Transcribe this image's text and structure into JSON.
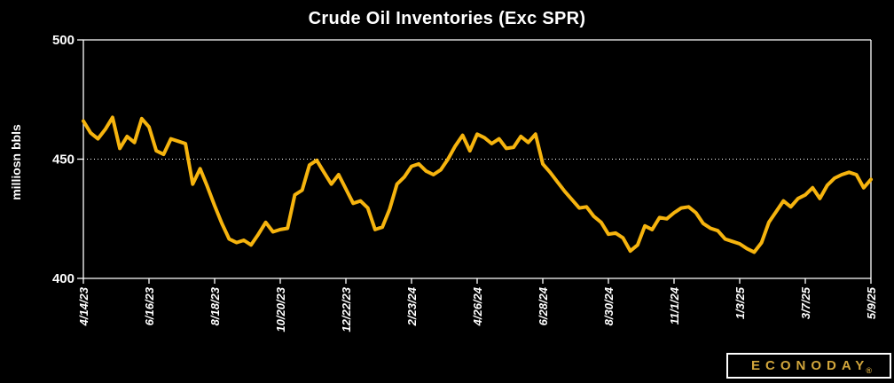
{
  "title": "Crude Oil Inventories (Exc SPR)",
  "y_axis_label": "milliosn bbls",
  "logo": {
    "text": "ECONODAY",
    "registered_mark": "®"
  },
  "colors": {
    "background": "#000000",
    "line": "#F6B40E",
    "axis": "#FFFFFF",
    "text": "#FFFFFF",
    "logo_text": "#D2A63C"
  },
  "chart_data": {
    "type": "line",
    "title": "Crude Oil Inventories (Exc SPR)",
    "xlabel": "",
    "ylabel": "milliosn bbls",
    "ylim": [
      400,
      500
    ],
    "y_ticks": [
      500,
      450,
      400
    ],
    "dotted_gridline_at": 450,
    "legend_position": "none",
    "x_tick_indices": [
      0,
      9,
      18,
      27,
      36,
      45,
      54,
      63,
      72,
      81,
      90,
      99,
      108
    ],
    "x_tick_labels": [
      "4/14/23",
      "6/16/23",
      "8/18/23",
      "10/20/23",
      "12/22/23",
      "2/23/24",
      "4/26/24",
      "6/28/24",
      "8/30/24",
      "11/1/24",
      "1/3/25",
      "3/7/25",
      "5/9/25"
    ],
    "x": [
      "4/14/23",
      "4/21/23",
      "4/28/23",
      "5/5/23",
      "5/12/23",
      "5/19/23",
      "5/26/23",
      "6/2/23",
      "6/9/23",
      "6/16/23",
      "6/23/23",
      "6/30/23",
      "7/7/23",
      "7/14/23",
      "7/21/23",
      "7/28/23",
      "8/4/23",
      "8/11/23",
      "8/18/23",
      "8/25/23",
      "9/1/23",
      "9/8/23",
      "9/15/23",
      "9/22/23",
      "9/29/23",
      "10/6/23",
      "10/13/23",
      "10/20/23",
      "10/27/23",
      "11/3/23",
      "11/10/23",
      "11/17/23",
      "11/24/23",
      "12/1/23",
      "12/8/23",
      "12/15/23",
      "12/22/23",
      "12/29/23",
      "1/5/24",
      "1/12/24",
      "1/19/24",
      "1/26/24",
      "2/2/24",
      "2/9/24",
      "2/16/24",
      "2/23/24",
      "3/1/24",
      "3/8/24",
      "3/15/24",
      "3/22/24",
      "3/29/24",
      "4/5/24",
      "4/12/24",
      "4/19/24",
      "4/26/24",
      "5/3/24",
      "5/10/24",
      "5/17/24",
      "5/24/24",
      "5/31/24",
      "6/7/24",
      "6/14/24",
      "6/21/24",
      "6/28/24",
      "7/5/24",
      "7/12/24",
      "7/19/24",
      "7/26/24",
      "8/2/24",
      "8/9/24",
      "8/16/24",
      "8/23/24",
      "8/30/24",
      "9/6/24",
      "9/13/24",
      "9/20/24",
      "9/27/24",
      "10/4/24",
      "10/11/24",
      "10/18/24",
      "10/25/24",
      "11/1/24",
      "11/8/24",
      "11/15/24",
      "11/22/24",
      "11/29/24",
      "12/6/24",
      "12/13/24",
      "12/20/24",
      "12/27/24",
      "1/3/25",
      "1/10/25",
      "1/17/25",
      "1/24/25",
      "1/31/25",
      "2/7/25",
      "2/14/25",
      "2/21/25",
      "2/28/25",
      "3/7/25",
      "3/14/25",
      "3/21/25",
      "3/28/25",
      "4/4/25",
      "4/11/25",
      "4/18/25",
      "4/25/25",
      "5/2/25",
      "5/9/25"
    ],
    "series": [
      {
        "name": "Crude Oil Inventories (Exc SPR), million bbls",
        "values": [
          466,
          461,
          458.5,
          462.5,
          467.5,
          454.5,
          459.5,
          457,
          467,
          463.5,
          453.5,
          452,
          458.5,
          457.5,
          456.5,
          439.5,
          446,
          438.5,
          430.5,
          423,
          416.5,
          415,
          416,
          414,
          418.5,
          423.5,
          419.5,
          420.5,
          421,
          435,
          437,
          447.5,
          449.5,
          444.5,
          439.5,
          443.5,
          437.5,
          431.5,
          432.5,
          429.5,
          420.5,
          421.5,
          429,
          439.5,
          442.5,
          447,
          448,
          445,
          443.5,
          445.5,
          450,
          455.5,
          460,
          453.5,
          460.5,
          459,
          456.5,
          458.5,
          454.5,
          455,
          459.5,
          457,
          460.5,
          448,
          444.5,
          440.5,
          436.5,
          433,
          429.5,
          430,
          426,
          423.5,
          418.5,
          419,
          417,
          411.5,
          414,
          422,
          420.5,
          425.5,
          425,
          427.5,
          429.5,
          430,
          427.5,
          423,
          421,
          420,
          416.5,
          415.5,
          414.5,
          412.5,
          411,
          415,
          423.5,
          428,
          432.5,
          430,
          433.5,
          435,
          438,
          433.5,
          439,
          442,
          443.5,
          444.5,
          443.5,
          438,
          441.5
        ]
      }
    ]
  }
}
